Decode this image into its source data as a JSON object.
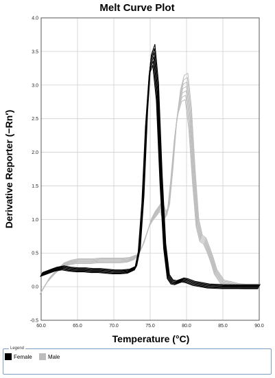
{
  "chart_data": {
    "type": "line",
    "title": "Melt Curve Plot",
    "xlabel": "Temperature (°C)",
    "ylabel": "Derivative Reporter (−Rn′)",
    "xlim": [
      60.0,
      90.0
    ],
    "ylim": [
      -0.5,
      4.0
    ],
    "x_ticks": [
      "60.0",
      "65.0",
      "70.0",
      "75.0",
      "80.0",
      "85.0",
      "90.0"
    ],
    "y_ticks": [
      "-0.5",
      "0.0",
      "0.5",
      "1.0",
      "1.5",
      "2.0",
      "2.5",
      "3.0",
      "3.5",
      "4.0"
    ],
    "grid": true,
    "legend_position": "bottom",
    "series": [
      {
        "name": "Female",
        "color": "#000000",
        "x": [
          60.0,
          61.0,
          62.0,
          63.0,
          64.0,
          65.0,
          66.0,
          67.0,
          68.0,
          69.0,
          70.0,
          71.0,
          72.0,
          73.0,
          73.5,
          74.0,
          74.5,
          75.0,
          75.5,
          76.0,
          76.5,
          77.0,
          77.5,
          78.0,
          78.5,
          79.0,
          79.5,
          80.0,
          81.0,
          82.0,
          83.0,
          85.0,
          88.0,
          90.0
        ],
        "values": [
          0.18,
          0.22,
          0.26,
          0.28,
          0.26,
          0.25,
          0.25,
          0.24,
          0.24,
          0.23,
          0.22,
          0.22,
          0.23,
          0.28,
          0.55,
          1.3,
          2.5,
          3.3,
          3.45,
          2.9,
          1.6,
          0.6,
          0.15,
          0.07,
          0.06,
          0.08,
          0.1,
          0.09,
          0.05,
          0.03,
          0.01,
          0.0,
          0.0,
          0.0
        ],
        "replicates": 6
      },
      {
        "name": "Male",
        "color": "#bdbdbd",
        "x": [
          60.0,
          61.0,
          62.0,
          63.0,
          64.0,
          65.0,
          66.0,
          67.0,
          68.0,
          69.0,
          70.0,
          71.0,
          72.0,
          73.0,
          73.5,
          74.0,
          74.5,
          75.0,
          75.5,
          76.0,
          76.5,
          77.0,
          77.5,
          78.0,
          78.5,
          79.0,
          79.5,
          80.0,
          80.5,
          81.0,
          81.5,
          82.0,
          82.5,
          83.0,
          83.5,
          84.0,
          85.0,
          86.0,
          87.0,
          88.0,
          90.0
        ],
        "values": [
          -0.08,
          0.1,
          0.22,
          0.32,
          0.36,
          0.38,
          0.38,
          0.38,
          0.39,
          0.39,
          0.39,
          0.39,
          0.4,
          0.44,
          0.5,
          0.62,
          0.78,
          0.95,
          1.05,
          1.12,
          1.2,
          1.05,
          1.15,
          1.7,
          2.35,
          2.75,
          2.95,
          2.98,
          2.5,
          1.65,
          0.95,
          0.72,
          0.68,
          0.55,
          0.4,
          0.22,
          0.06,
          0.04,
          0.01,
          0.0,
          0.0
        ],
        "replicates": 7
      }
    ]
  },
  "legend": {
    "title": "Legend",
    "items": [
      {
        "label": "Female",
        "color": "#000000"
      },
      {
        "label": "Male",
        "color": "#bdbdbd"
      }
    ]
  }
}
